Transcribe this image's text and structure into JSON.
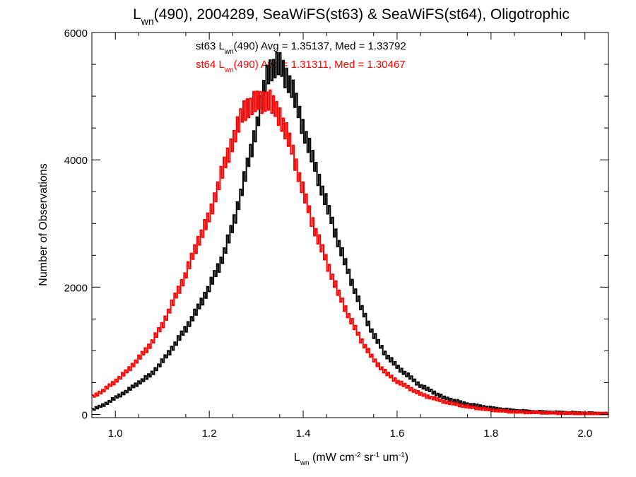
{
  "chart_data": {
    "type": "line",
    "title": {
      "pre": "L",
      "sub": "wn",
      "post": "(490), 2004289, SeaWiFS(st63) & SeaWiFS(st64), Oligotrophic"
    },
    "xlabel": {
      "pre": "L",
      "sub": "wn",
      "unit": " (mW cm",
      "sup1": "-2",
      "mid1": " sr",
      "sup2": "-1",
      "mid2": " um",
      "sup3": "-1",
      "end": ")"
    },
    "ylabel": "Number of Observations",
    "xlim": [
      0.95,
      2.05
    ],
    "ylim": [
      -50,
      6000
    ],
    "xticks": [
      "1.0",
      "1.2",
      "1.4",
      "1.6",
      "1.8",
      "2.0"
    ],
    "yticks": [
      "0",
      "2000",
      "4000",
      "6000"
    ],
    "grid": false,
    "annotations": [
      {
        "pre": "st63 L",
        "sub": "wn",
        "post": "(490) Avg = 1.35137, Med = 1.33792",
        "color": "#000000"
      },
      {
        "pre": "st64 L",
        "sub": "wn",
        "post": "(490) Avg = 1.31311, Med = 1.30467",
        "color": "#ff0000"
      }
    ],
    "series": [
      {
        "color": "#000000",
        "x": [
          0.95,
          0.975,
          1.0,
          1.025,
          1.05,
          1.075,
          1.1,
          1.125,
          1.15,
          1.175,
          1.2,
          1.225,
          1.25,
          1.275,
          1.3,
          1.325,
          1.35,
          1.375,
          1.4,
          1.425,
          1.45,
          1.475,
          1.5,
          1.525,
          1.55,
          1.575,
          1.6,
          1.625,
          1.65,
          1.675,
          1.7,
          1.75,
          1.8,
          1.85,
          1.9,
          1.95,
          2.0,
          2.05
        ],
        "values": [
          70,
          150,
          260,
          370,
          500,
          620,
          830,
          1080,
          1350,
          1650,
          2000,
          2400,
          2950,
          3700,
          4500,
          5400,
          5500,
          5150,
          4500,
          3900,
          3300,
          2700,
          2150,
          1650,
          1250,
          950,
          750,
          600,
          450,
          360,
          260,
          160,
          100,
          60,
          40,
          30,
          20,
          10
        ]
      },
      {
        "color": "#ff0000",
        "x": [
          0.95,
          0.975,
          1.0,
          1.025,
          1.05,
          1.075,
          1.1,
          1.125,
          1.15,
          1.175,
          1.2,
          1.225,
          1.25,
          1.275,
          1.3,
          1.325,
          1.35,
          1.375,
          1.4,
          1.425,
          1.45,
          1.475,
          1.5,
          1.525,
          1.55,
          1.575,
          1.6,
          1.625,
          1.65,
          1.675,
          1.7,
          1.75,
          1.8,
          1.85,
          1.9,
          1.95,
          2.0,
          2.05
        ],
        "values": [
          270,
          380,
          520,
          680,
          880,
          1100,
          1400,
          1800,
          2200,
          2700,
          3100,
          3750,
          4300,
          4800,
          4900,
          4950,
          4700,
          4200,
          3500,
          2900,
          2400,
          1900,
          1500,
          1150,
          860,
          660,
          520,
          420,
          320,
          260,
          200,
          120,
          70,
          40,
          30,
          20,
          15,
          10
        ]
      }
    ]
  }
}
